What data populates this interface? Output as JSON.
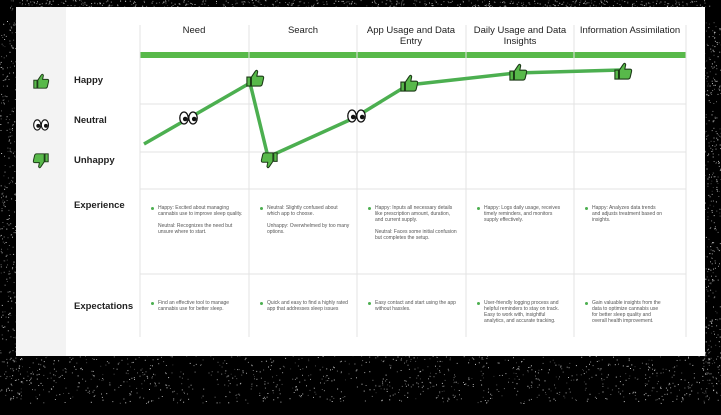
{
  "colors": {
    "accent": "#58b94a",
    "line": "#4caf50",
    "grid": "#e3e3e3",
    "text": "#222222",
    "muted": "#555555"
  },
  "stages": [
    "Need",
    "Search",
    "App Usage and Data Entry",
    "Daily Usage and Data Insights",
    "Information Assimilation"
  ],
  "emotions": {
    "happy": "Happy",
    "neutral": "Neutral",
    "unhappy": "Unhappy",
    "icons": {
      "happy": "thumbs-up-icon",
      "neutral": "eyes-icon",
      "unhappy": "thumbs-down-icon"
    }
  },
  "journey": [
    {
      "stage": "Need",
      "emotion": "Neutral"
    },
    {
      "stage": "Need",
      "emotion": "Happy"
    },
    {
      "stage": "Search",
      "emotion": "Unhappy"
    },
    {
      "stage": "App Usage and Data Entry",
      "emotion": "Neutral"
    },
    {
      "stage": "App Usage and Data Entry",
      "emotion": "Happy"
    },
    {
      "stage": "Daily Usage and Data Insights",
      "emotion": "Happy"
    },
    {
      "stage": "Information Assimilation",
      "emotion": "Happy"
    }
  ],
  "rows": {
    "experience": "Experience",
    "expectations": "Expectations"
  },
  "experience": [
    [
      "Happy: Excited about managing cannabis use to improve sleep quality.",
      "Neutral: Recognizes the need but unsure where to start."
    ],
    [
      "Neutral: Slightly confused about which app to choose.",
      "Unhappy: Overwhelmed by too many options."
    ],
    [
      "Happy: Inputs all necessary details like prescription amount, duration, and current supply.",
      "Neutral: Faces some initial confusion but completes the setup."
    ],
    [
      "Happy: Logs daily usage, receives timely reminders, and monitors supply effectively."
    ],
    [
      "Happy: Analyzes data trends and adjusts treatment based on insights."
    ]
  ],
  "expectations": [
    "Find an effective tool to manage cannabis use for better sleep.",
    "Quick and easy to find a highly rated app that addresses sleep issues",
    "Easy contact and start using the app without hassles.",
    "User-friendly logging process and helpful reminders to stay on track. Easy to work with, insightful analytics, and accurate tracking.",
    "Gain valuable insights from the data to optimize cannabis use for better sleep quality and overall health improvement."
  ]
}
